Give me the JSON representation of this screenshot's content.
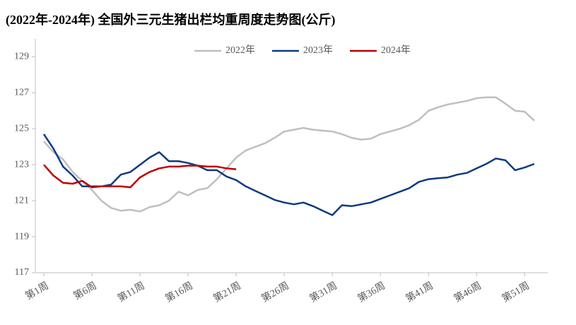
{
  "chart_data": {
    "type": "line",
    "title": "(2022年-2024年) 全国外三元生猪出栏均重周度走势图(公斤)",
    "categories": [
      "第1周",
      null,
      null,
      null,
      null,
      "第6周",
      null,
      null,
      null,
      null,
      "第11周",
      null,
      null,
      null,
      null,
      "第16周",
      null,
      null,
      null,
      null,
      "第21周",
      null,
      null,
      null,
      null,
      "第26周",
      null,
      null,
      null,
      null,
      "第31周",
      null,
      null,
      null,
      null,
      "第36周",
      null,
      null,
      null,
      null,
      "第41周",
      null,
      null,
      null,
      null,
      "第46周",
      null,
      null,
      null,
      null,
      "第51周",
      null
    ],
    "series": [
      {
        "name": "2022年",
        "color": "#bfbfbf",
        "values": [
          124.3,
          123.7,
          123.3,
          122.6,
          122.1,
          121.6,
          121.0,
          120.6,
          120.45,
          120.5,
          120.4,
          120.65,
          120.75,
          121.0,
          121.5,
          121.3,
          121.6,
          121.7,
          122.2,
          122.8,
          123.4,
          123.8,
          124.0,
          124.2,
          124.5,
          124.85,
          124.95,
          125.05,
          124.95,
          124.9,
          124.85,
          124.7,
          124.5,
          124.4,
          124.45,
          124.7,
          124.85,
          125.0,
          125.2,
          125.5,
          126.0,
          126.2,
          126.35,
          126.45,
          126.55,
          126.7,
          126.75,
          126.75,
          126.4,
          126.0,
          125.95,
          125.45
        ]
      },
      {
        "name": "2023年",
        "color": "#0e3a7e",
        "values": [
          124.7,
          123.9,
          122.9,
          122.4,
          121.8,
          121.8,
          121.8,
          121.9,
          122.45,
          122.6,
          123.0,
          123.4,
          123.7,
          123.2,
          123.2,
          123.1,
          122.95,
          122.7,
          122.7,
          122.35,
          122.15,
          121.8,
          121.55,
          121.3,
          121.05,
          120.9,
          120.8,
          120.9,
          120.7,
          120.45,
          120.2,
          120.75,
          120.7,
          120.8,
          120.9,
          121.1,
          121.3,
          121.5,
          121.7,
          122.05,
          122.2,
          122.25,
          122.3,
          122.45,
          122.55,
          122.8,
          123.05,
          123.35,
          123.25,
          122.7,
          122.85,
          123.05
        ]
      },
      {
        "name": "2024年",
        "color": "#c00000",
        "values": [
          123.0,
          122.4,
          122.0,
          121.95,
          122.1,
          121.75,
          121.8,
          121.8,
          121.8,
          121.75,
          122.3,
          122.6,
          122.8,
          122.9,
          122.9,
          122.95,
          122.95,
          122.9,
          122.9,
          122.8,
          122.75,
          null,
          null,
          null,
          null,
          null,
          null,
          null,
          null,
          null,
          null,
          null,
          null,
          null,
          null,
          null,
          null,
          null,
          null,
          null,
          null,
          null,
          null,
          null,
          null,
          null,
          null,
          null,
          null,
          null,
          null,
          null
        ]
      }
    ],
    "ylim": [
      117,
      130
    ],
    "yticks": [
      117,
      119,
      121,
      123,
      125,
      127,
      129
    ]
  }
}
